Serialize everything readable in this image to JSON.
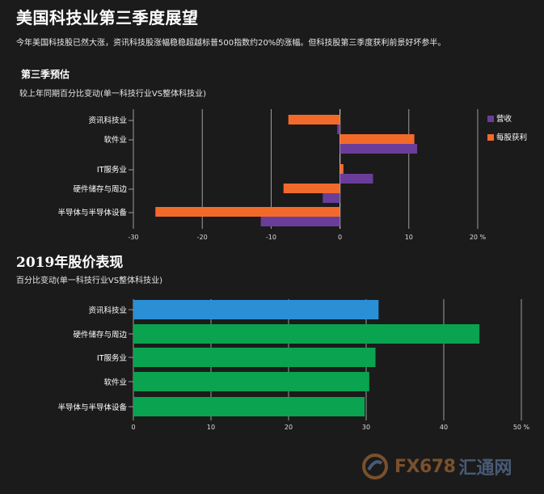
{
  "header": {
    "title": "美国科技业第三季度展望",
    "subtitle": "今年美国科技股已然大涨，资讯科技股涨幅稳稳超越标普500指数约20%的涨幅。但科技股第三季度获利前景好坏参半。"
  },
  "section1": {
    "title": "第三季预估",
    "subtitle": "较上年同期百分比变动(单一科技行业VS整体科技业)"
  },
  "section2": {
    "title": "2019年股价表现",
    "subtitle": "百分比变动(单一科技行业VS整体科技业)"
  },
  "colors": {
    "revenue": "#6a3d9a",
    "eps": "#f26a2a",
    "perf_highlight": "#2b8fd6",
    "perf_default": "#0aa34f",
    "grid": "#bdbdbd",
    "background": "#1b1b1b"
  },
  "chart_data": [
    {
      "type": "bar",
      "orientation": "horizontal",
      "categories": [
        "资讯科技业",
        "软件业",
        "IT服务业",
        "硬件储存与周边",
        "半导体与半导体设备"
      ],
      "series": [
        {
          "name": "每股获利",
          "values": [
            -7.5,
            10.8,
            0.5,
            -8.2,
            -26.8
          ]
        },
        {
          "name": "营收",
          "values": [
            -0.4,
            11.2,
            4.8,
            -2.5,
            -11.5
          ]
        }
      ],
      "xlim": [
        -30,
        20
      ],
      "xticks": [
        "-30",
        "-20",
        "-10",
        "0",
        "10",
        "20 %"
      ],
      "xtick_values": [
        -30,
        -20,
        -10,
        0,
        10,
        20
      ],
      "legend": [
        "营收",
        "每股获利"
      ],
      "legend_position": "right",
      "grid": true
    },
    {
      "type": "bar",
      "orientation": "horizontal",
      "categories": [
        "资讯科技业",
        "硬件储存与周边",
        "IT服务业",
        "软件业",
        "半导体与半导体设备"
      ],
      "values": [
        31.6,
        44.6,
        31.2,
        30.4,
        29.8
      ],
      "xlim": [
        0,
        50
      ],
      "xticks": [
        "0",
        "10",
        "20",
        "30",
        "40",
        "50 %"
      ],
      "xtick_values": [
        0,
        10,
        20,
        30,
        40,
        50
      ],
      "grid": true
    }
  ],
  "watermark": {
    "brand": "FX678",
    "brand_cn": "汇通网"
  }
}
